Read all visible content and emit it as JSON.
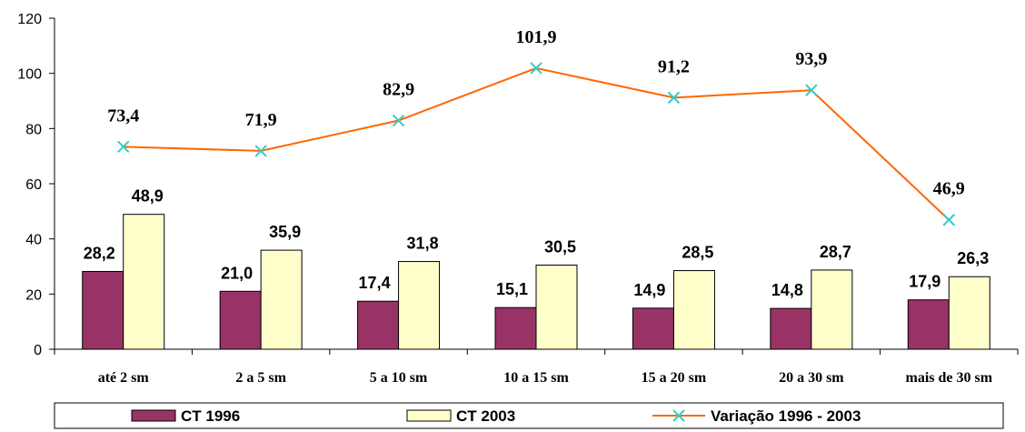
{
  "chart_data": {
    "type": "bar",
    "categories": [
      "até 2 sm",
      "2 a 5 sm",
      "5 a 10 sm",
      "10 a 15 sm",
      "15 a 20 sm",
      "20 a 30 sm",
      "mais de 30 sm"
    ],
    "series": [
      {
        "name": "CT 1996",
        "type": "bar",
        "color": "#993366",
        "values": [
          28.2,
          21.0,
          17.4,
          15.1,
          14.9,
          14.8,
          17.9
        ],
        "labels": [
          "28,2",
          "21,0",
          "17,4",
          "15,1",
          "14,9",
          "14,8",
          "17,9"
        ]
      },
      {
        "name": "CT 2003",
        "type": "bar",
        "color": "#FFFFCC",
        "values": [
          48.9,
          35.9,
          31.8,
          30.5,
          28.5,
          28.7,
          26.3
        ],
        "labels": [
          "48,9",
          "35,9",
          "31,8",
          "30,5",
          "28,5",
          "28,7",
          "26,3"
        ]
      },
      {
        "name": "Variação 1996 - 2003",
        "type": "line",
        "color": "#FF6600",
        "marker_color": "#33CCCC",
        "values": [
          73.4,
          71.9,
          82.9,
          101.9,
          91.2,
          93.9,
          46.9
        ],
        "labels": [
          "73,4",
          "71,9",
          "82,9",
          "101,9",
          "91,2",
          "93,9",
          "46,9"
        ]
      }
    ],
    "y_ticks": [
      "0",
      "20",
      "40",
      "60",
      "80",
      "100",
      "120"
    ],
    "ylim": [
      0,
      120
    ],
    "grid": false,
    "legend_position": "bottom"
  }
}
